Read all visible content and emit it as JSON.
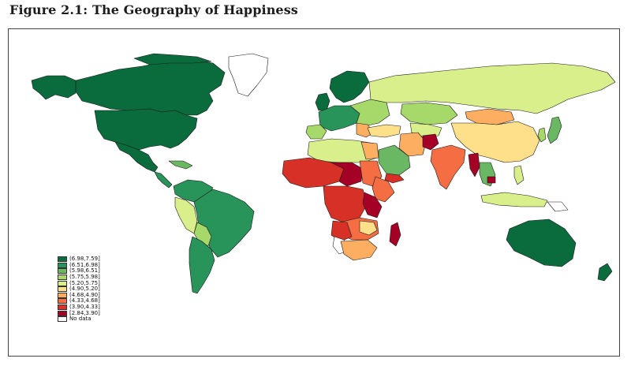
{
  "figure": {
    "title": "Figure 2.1: The Geography of Happiness"
  },
  "legend": {
    "items": [
      {
        "label": "(6.98,7.59]",
        "color": "#0a6b3c"
      },
      {
        "label": "(6.51,6.98]",
        "color": "#28945a"
      },
      {
        "label": "(5.98,6.51]",
        "color": "#6ab863"
      },
      {
        "label": "(5.75,5.98]",
        "color": "#a6d96a"
      },
      {
        "label": "(5.20,5.75]",
        "color": "#d9ef8b"
      },
      {
        "label": "(4.90,5.20]",
        "color": "#fee08b"
      },
      {
        "label": "(4.68,4.90]",
        "color": "#fdae61"
      },
      {
        "label": "(4.33,4.68]",
        "color": "#f46d43"
      },
      {
        "label": "(3.90,4.33]",
        "color": "#d73027"
      },
      {
        "label": "[2.84,3.90]",
        "color": "#a50026"
      },
      {
        "label": "No data",
        "color": "#ffffff"
      }
    ]
  }
}
